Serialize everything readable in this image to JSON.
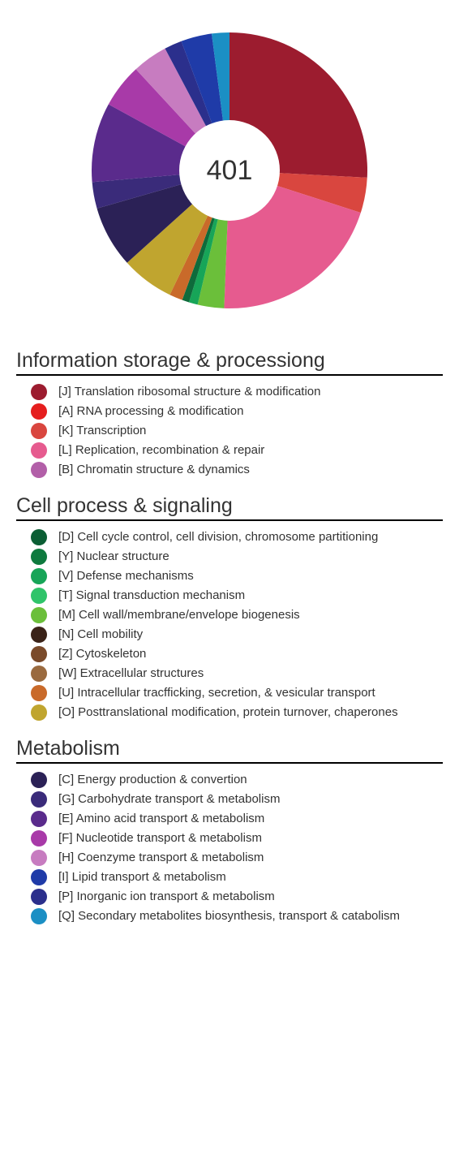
{
  "chart": {
    "type": "donut",
    "center_label": "401",
    "center_fontsize": 34,
    "center_color": "#333333",
    "outer_radius": 170,
    "inner_radius": 62,
    "background_color": "#ffffff",
    "start_angle_deg": -90,
    "slices": [
      {
        "code": "J",
        "value": 25.0,
        "color": "#9c1c2f"
      },
      {
        "code": "K",
        "value": 4.0,
        "color": "#d9463f"
      },
      {
        "code": "L",
        "value": 20.0,
        "color": "#e65b8f"
      },
      {
        "code": "M",
        "value": 3.0,
        "color": "#6bbf3a"
      },
      {
        "code": "V",
        "value": 1.0,
        "color": "#17a558"
      },
      {
        "code": "D",
        "value": 0.8,
        "color": "#0e6b3b"
      },
      {
        "code": "U",
        "value": 1.5,
        "color": "#c96a2a"
      },
      {
        "code": "O",
        "value": 6.0,
        "color": "#c0a52f"
      },
      {
        "code": "C",
        "value": 7.0,
        "color": "#2b2156"
      },
      {
        "code": "G",
        "value": 3.0,
        "color": "#3a2b7a"
      },
      {
        "code": "E",
        "value": 9.0,
        "color": "#5a2b8c"
      },
      {
        "code": "F",
        "value": 5.0,
        "color": "#a83aa8"
      },
      {
        "code": "H",
        "value": 4.0,
        "color": "#c77cc0"
      },
      {
        "code": "P",
        "value": 2.0,
        "color": "#2b2f8c"
      },
      {
        "code": "I",
        "value": 3.5,
        "color": "#1f3ba8"
      },
      {
        "code": "Q",
        "value": 2.0,
        "color": "#1b8fc4"
      }
    ]
  },
  "groups": [
    {
      "title": "Information storage & processiong",
      "items": [
        {
          "color": "#9c1c2f",
          "label": "[J] Translation ribosomal structure & modification"
        },
        {
          "color": "#e51e1e",
          "label": "[A] RNA processing & modification"
        },
        {
          "color": "#d9463f",
          "label": "[K] Transcription"
        },
        {
          "color": "#e65b8f",
          "label": "[L] Replication, recombination & repair"
        },
        {
          "color": "#b25fa8",
          "label": "[B] Chromatin structure & dynamics"
        }
      ]
    },
    {
      "title": "Cell process & signaling",
      "items": [
        {
          "color": "#0b5e34",
          "label": "[D] Cell cycle control, cell division, chromosome partitioning"
        },
        {
          "color": "#0e7a3e",
          "label": "[Y] Nuclear structure"
        },
        {
          "color": "#17a558",
          "label": "[V] Defense mechanisms"
        },
        {
          "color": "#2fc46a",
          "label": "[T] Signal transduction mechanism"
        },
        {
          "color": "#6bbf3a",
          "label": "[M] Cell wall/membrane/envelope biogenesis"
        },
        {
          "color": "#3a2218",
          "label": "[N] Cell mobility"
        },
        {
          "color": "#7a4a2a",
          "label": "[Z] Cytoskeleton"
        },
        {
          "color": "#9a6a3f",
          "label": "[W] Extracellular structures"
        },
        {
          "color": "#c96a2a",
          "label": "[U] Intracellular tracfficking, secretion, & vesicular transport"
        },
        {
          "color": "#c0a52f",
          "label": "[O] Posttranslational modification, protein turnover, chaperones"
        }
      ]
    },
    {
      "title": "Metabolism",
      "items": [
        {
          "color": "#2b2156",
          "label": "[C] Energy production & convertion"
        },
        {
          "color": "#3a2b7a",
          "label": "[G] Carbohydrate transport & metabolism"
        },
        {
          "color": "#5a2b8c",
          "label": "[E] Amino acid transport & metabolism"
        },
        {
          "color": "#a83aa8",
          "label": "[F] Nucleotide transport & metabolism"
        },
        {
          "color": "#c77cc0",
          "label": "[H] Coenzyme transport & metabolism"
        },
        {
          "color": "#1f3ba8",
          "label": "[I] Lipid transport & metabolism"
        },
        {
          "color": "#2b2f8c",
          "label": "[P] Inorganic ion transport & metabolism"
        },
        {
          "color": "#1b8fc4",
          "label": "[Q] Secondary metabolites biosynthesis, transport & catabolism"
        }
      ]
    }
  ]
}
